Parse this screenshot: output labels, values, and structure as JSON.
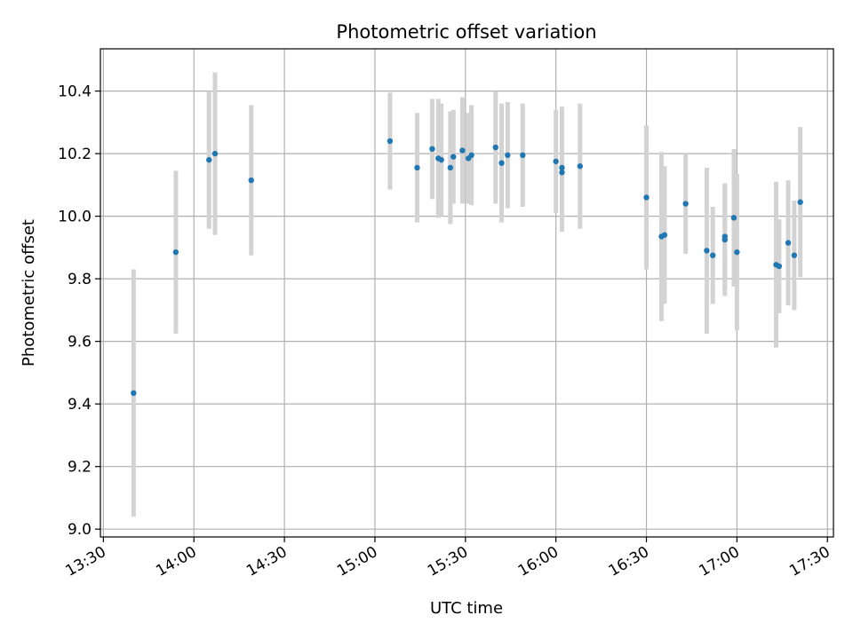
{
  "colors": {
    "point": "#1f77b4",
    "error_bar": "#d3d3d3",
    "grid": "#b0b0b0"
  },
  "chart_data": {
    "type": "scatter",
    "title": "Photometric offset variation",
    "xlabel": "UTC time",
    "ylabel": "Photometric offset",
    "grid": true,
    "xlim": [
      "13:29",
      "17:32"
    ],
    "ylim": [
      8.975,
      10.535
    ],
    "x_ticks": [
      "13:30",
      "14:00",
      "14:30",
      "15:00",
      "15:30",
      "16:00",
      "16:30",
      "17:00",
      "17:30"
    ],
    "y_ticks": [
      "9.0",
      "9.2",
      "9.4",
      "9.6",
      "9.8",
      "10.0",
      "10.2",
      "10.4"
    ],
    "series": [
      {
        "marker": "point",
        "error_bars": "vertical",
        "points": [
          {
            "x": "13:40",
            "y": 9.435,
            "err": 0.395
          },
          {
            "x": "13:54",
            "y": 9.885,
            "err": 0.26
          },
          {
            "x": "14:05",
            "y": 10.18,
            "err": 0.22
          },
          {
            "x": "14:07",
            "y": 10.2,
            "err": 0.26
          },
          {
            "x": "14:19",
            "y": 10.115,
            "err": 0.24
          },
          {
            "x": "15:05",
            "y": 10.24,
            "err": 0.155
          },
          {
            "x": "15:14",
            "y": 10.155,
            "err": 0.175
          },
          {
            "x": "15:19",
            "y": 10.215,
            "err": 0.16
          },
          {
            "x": "15:21",
            "y": 10.185,
            "err": 0.19
          },
          {
            "x": "15:22",
            "y": 10.18,
            "err": 0.18
          },
          {
            "x": "15:25",
            "y": 10.155,
            "err": 0.18
          },
          {
            "x": "15:26",
            "y": 10.19,
            "err": 0.15
          },
          {
            "x": "15:29",
            "y": 10.21,
            "err": 0.17
          },
          {
            "x": "15:31",
            "y": 10.185,
            "err": 0.145
          },
          {
            "x": "15:32",
            "y": 10.195,
            "err": 0.16
          },
          {
            "x": "15:40",
            "y": 10.22,
            "err": 0.18
          },
          {
            "x": "15:42",
            "y": 10.17,
            "err": 0.19
          },
          {
            "x": "15:44",
            "y": 10.195,
            "err": 0.17
          },
          {
            "x": "15:49",
            "y": 10.195,
            "err": 0.165
          },
          {
            "x": "16:00",
            "y": 10.175,
            "err": 0.165
          },
          {
            "x": "16:02",
            "y": 10.155,
            "err": 0.195
          },
          {
            "x": "16:02",
            "y": 10.14,
            "err": 0.19
          },
          {
            "x": "16:08",
            "y": 10.16,
            "err": 0.2
          },
          {
            "x": "16:30",
            "y": 10.06,
            "err": 0.23
          },
          {
            "x": "16:35",
            "y": 9.935,
            "err": 0.27
          },
          {
            "x": "16:36",
            "y": 9.94,
            "err": 0.22
          },
          {
            "x": "16:43",
            "y": 10.04,
            "err": 0.16
          },
          {
            "x": "16:50",
            "y": 9.89,
            "err": 0.265
          },
          {
            "x": "16:52",
            "y": 9.875,
            "err": 0.155
          },
          {
            "x": "16:56",
            "y": 9.935,
            "err": 0.17
          },
          {
            "x": "16:56",
            "y": 9.925,
            "err": 0.18
          },
          {
            "x": "16:59",
            "y": 9.995,
            "err": 0.22
          },
          {
            "x": "17:00",
            "y": 9.885,
            "err": 0.25
          },
          {
            "x": "17:13",
            "y": 9.845,
            "err": 0.265
          },
          {
            "x": "17:14",
            "y": 9.84,
            "err": 0.15
          },
          {
            "x": "17:17",
            "y": 9.915,
            "err": 0.2
          },
          {
            "x": "17:19",
            "y": 9.875,
            "err": 0.175
          },
          {
            "x": "17:21",
            "y": 10.045,
            "err": 0.24
          }
        ]
      }
    ]
  }
}
